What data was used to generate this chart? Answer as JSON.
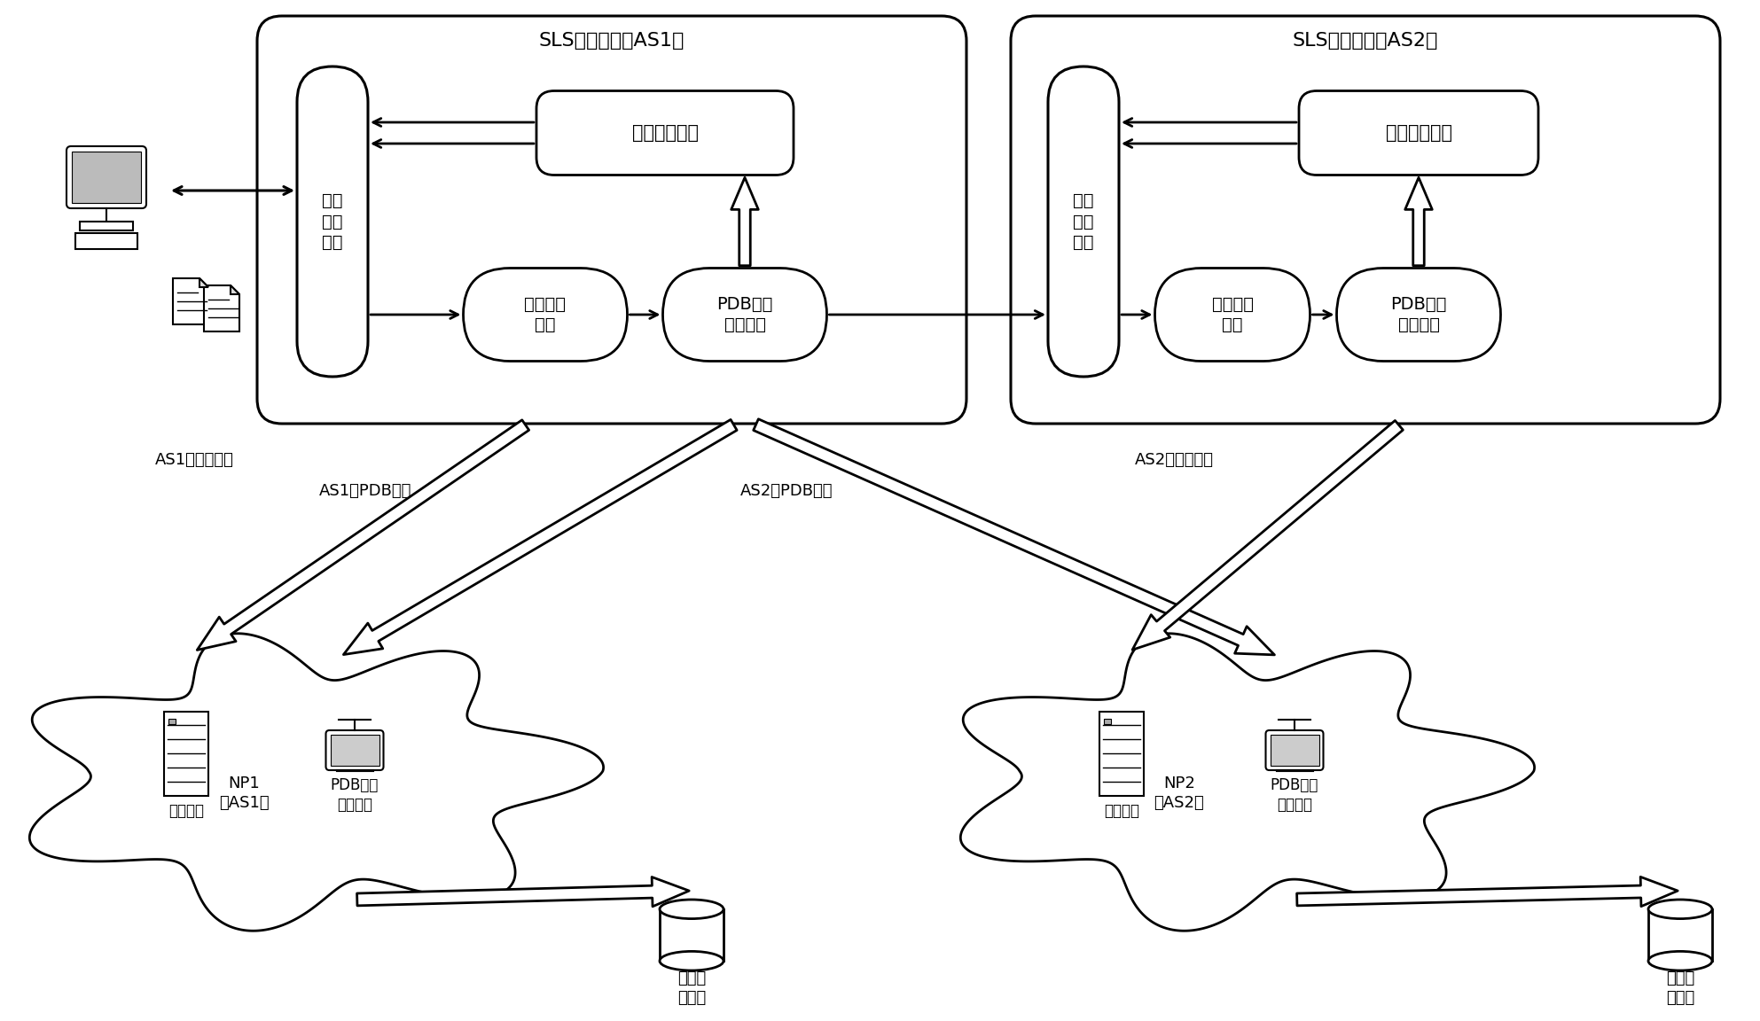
{
  "bg": "#ffffff",
  "as1_label": "SLS分解装置（AS1）",
  "as2_label": "SLS分解装置（AS2）",
  "user1_label": "用户\n接口\n模块",
  "user2_label": "用户\n接口\n模块",
  "param1_label": "参数分解模块",
  "param2_label": "参数分解模块",
  "route1_label": "路由分析\n模块",
  "route2_label": "路由分析\n模块",
  "pdb1_label": "PDB信息\n获取模块",
  "pdb2_label": "PDB信息\n获取模块",
  "as1_route_info": "AS1的路由信息",
  "as1_pdb_info": "AS1的PDB信息",
  "as2_pdb_info": "AS2的PDB信息",
  "as2_route_info": "AS2的路由信息",
  "np1_label": "NP1\n（AS1）",
  "np2_label": "NP2\n（AS2）",
  "wg1_label": "网管软件",
  "wg2_label": "网管软件",
  "pdb_if1_label": "PDB信息\n提供接口",
  "pdb_if2_label": "PDB信息\n提供接口",
  "db1_label": "网络测\n量数据",
  "db2_label": "网络测\n量数据"
}
